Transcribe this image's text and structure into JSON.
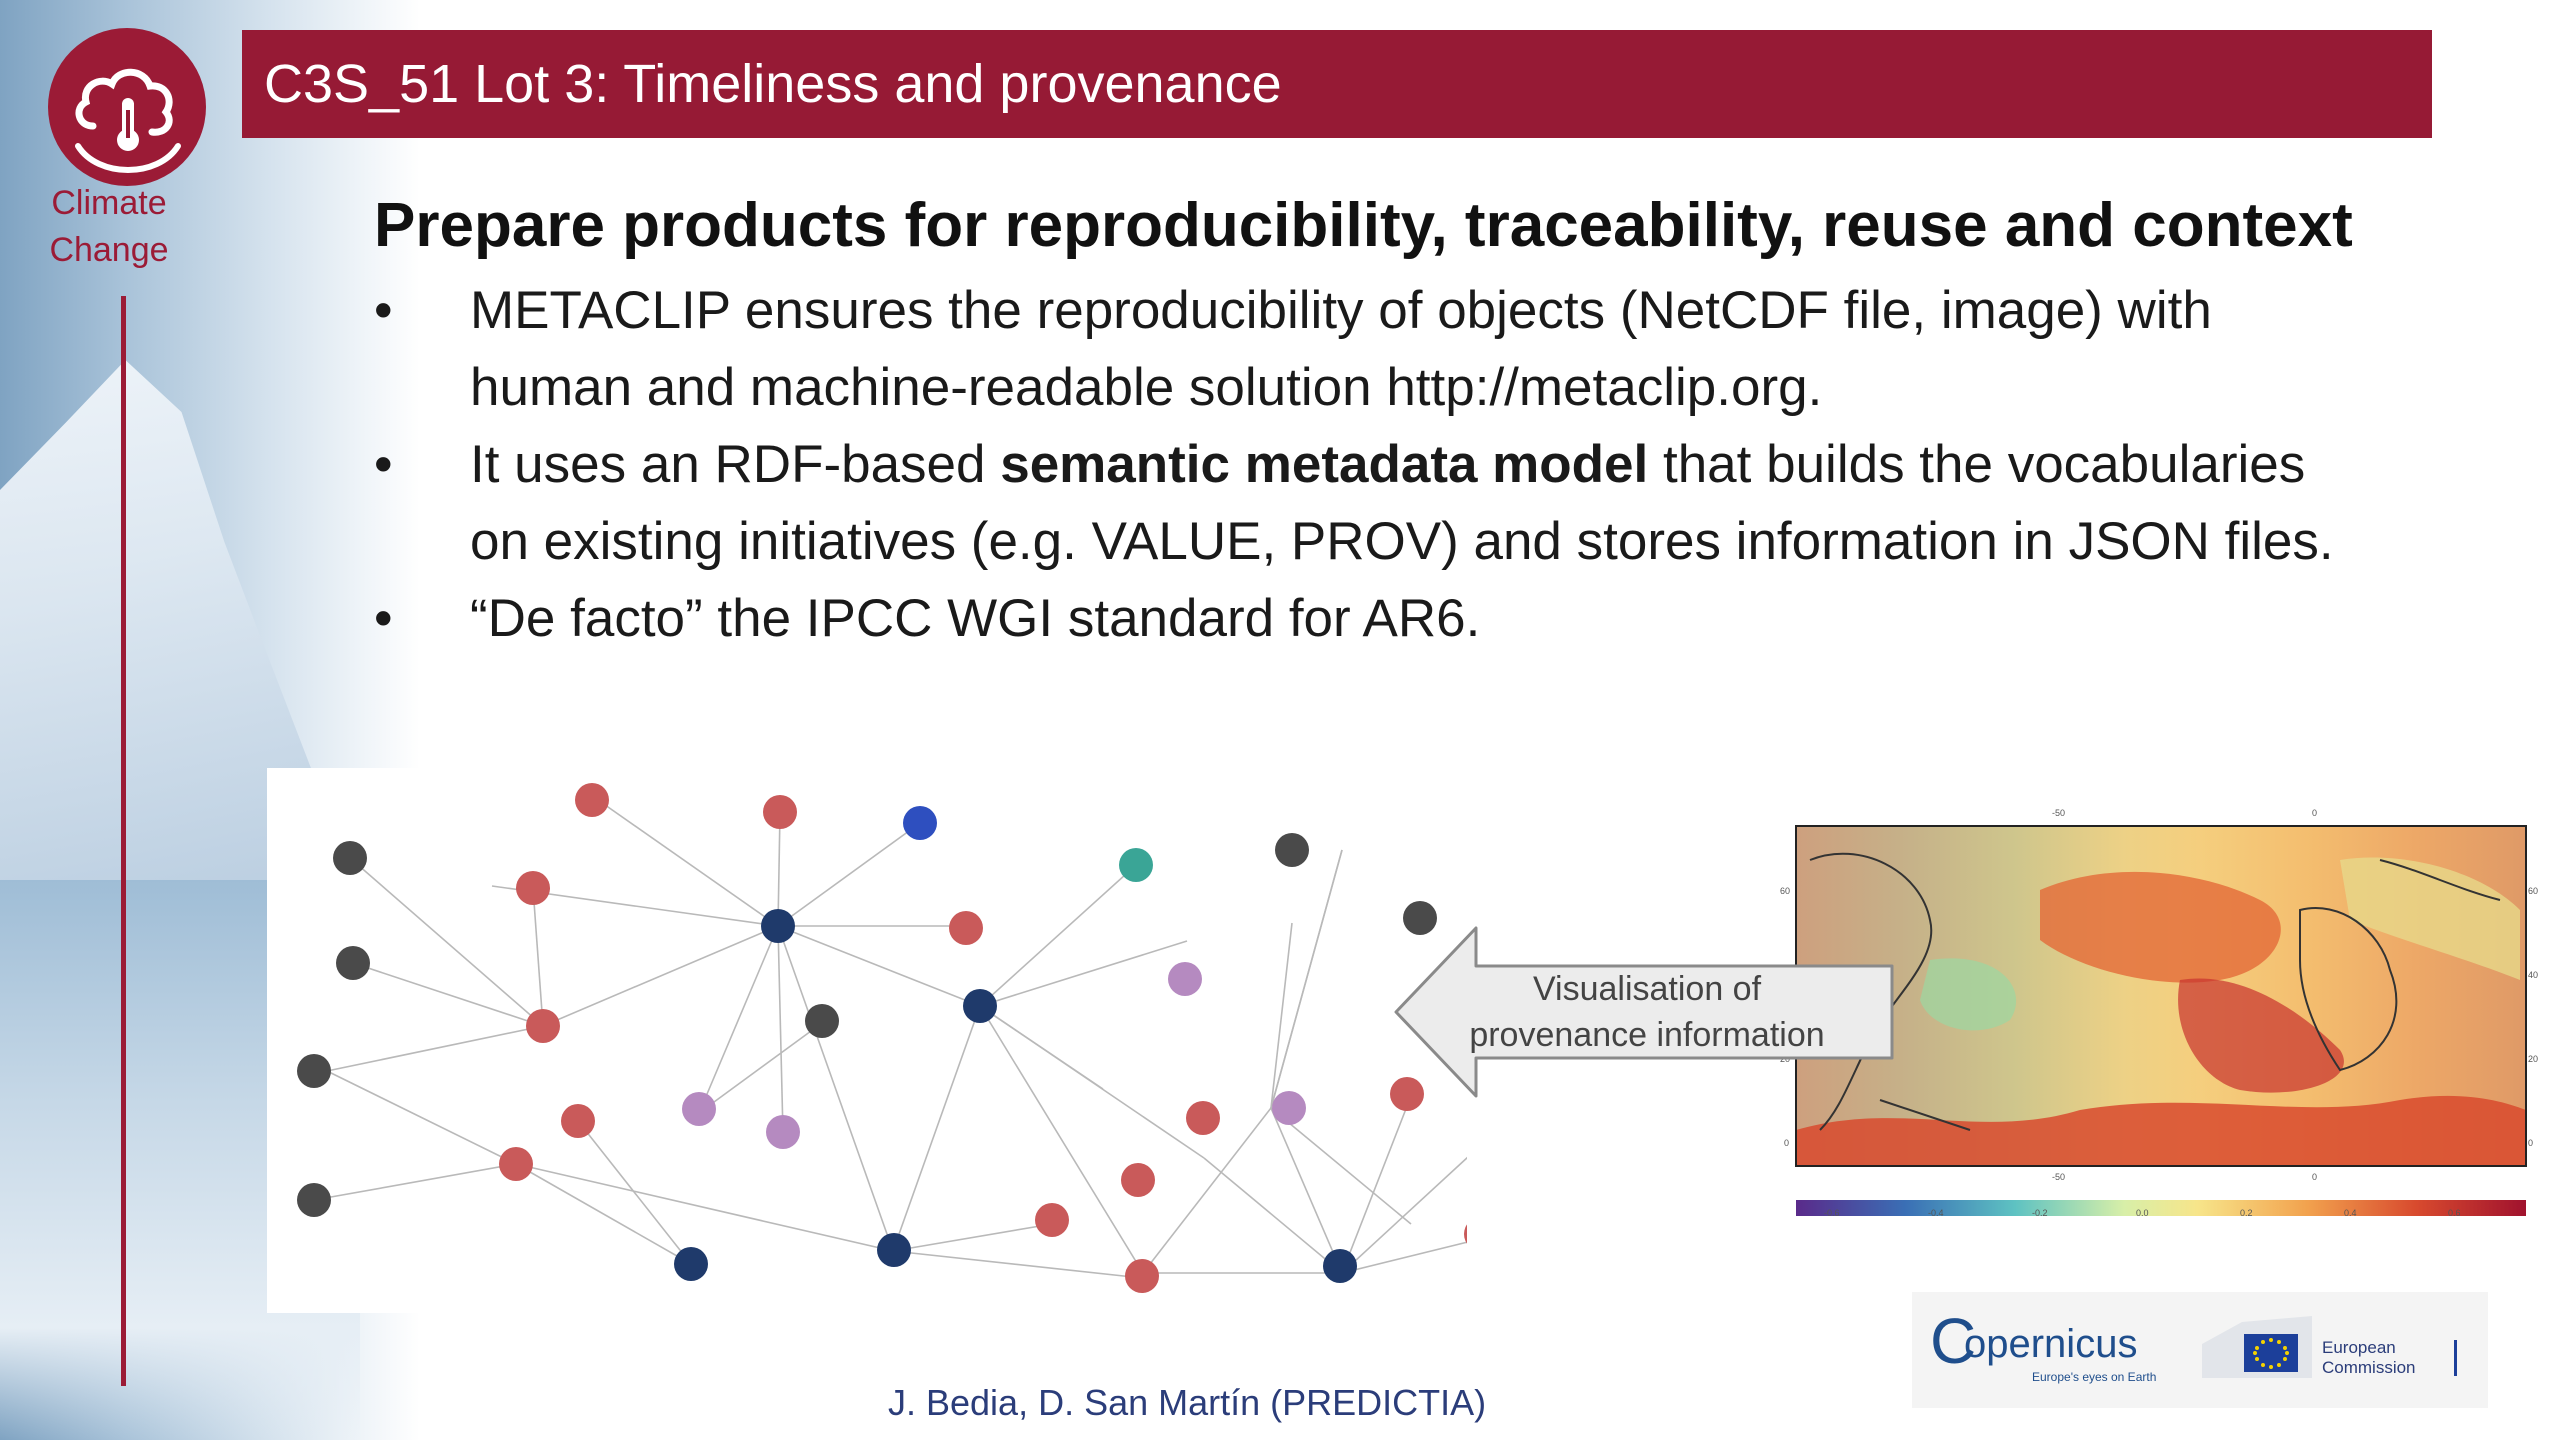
{
  "header": {
    "title": "C3S_51 Lot 3: Timeliness and provenance",
    "logo_text_line1": "Climate",
    "logo_text_line2": "Change"
  },
  "main": {
    "subtitle": "Prepare products for reproducibility, traceability, reuse and context",
    "bullets": [
      {
        "line1": "METACLIP ensures the reproducibility of objects (NetCDF file, image) with",
        "line2": "human and machine-readable solution http://metaclip.org."
      },
      {
        "line1_pre": "It uses an RDF-based ",
        "line1_bold": "semantic metadata model",
        "line1_post": " that builds the vocabularies",
        "line2": "on existing initiatives (e.g. VALUE, PROV) and stores information in JSON files."
      },
      {
        "line1": "“De facto” the IPCC WGI standard for AR6."
      }
    ],
    "bullet_symbol": "•"
  },
  "callout": {
    "line1": "Visualisation of",
    "line2": "provenance information"
  },
  "map": {
    "top_ticks": [
      "-50",
      "0"
    ],
    "bottom_ticks": [
      "-50",
      "0"
    ],
    "left_ticks": [
      "60",
      "40",
      "20",
      "0"
    ],
    "right_ticks": [
      "60",
      "40",
      "20",
      "0"
    ],
    "colorbar_ticks": [
      "-0.6",
      "-0.4",
      "-0.2",
      "0.0",
      "0.2",
      "0.4",
      "0.6"
    ]
  },
  "footer": {
    "copernicus_name": "opernicus",
    "copernicus_c": "C",
    "copernicus_tagline": "Europe's eyes on Earth",
    "ec_line1": "European",
    "ec_line2": "Commission",
    "credit": "J. Bedia, D. San Martín (PREDICTIA)"
  },
  "colors": {
    "brand_red": "#961a35",
    "credit_blue": "#2b3d7a",
    "node_red": "#c95a5a",
    "node_purple": "#b58ac0",
    "node_navy": "#1f3a6b",
    "node_gray": "#4a4a4a",
    "node_teal": "#3aa596",
    "node_blue": "#2e4fbf"
  }
}
